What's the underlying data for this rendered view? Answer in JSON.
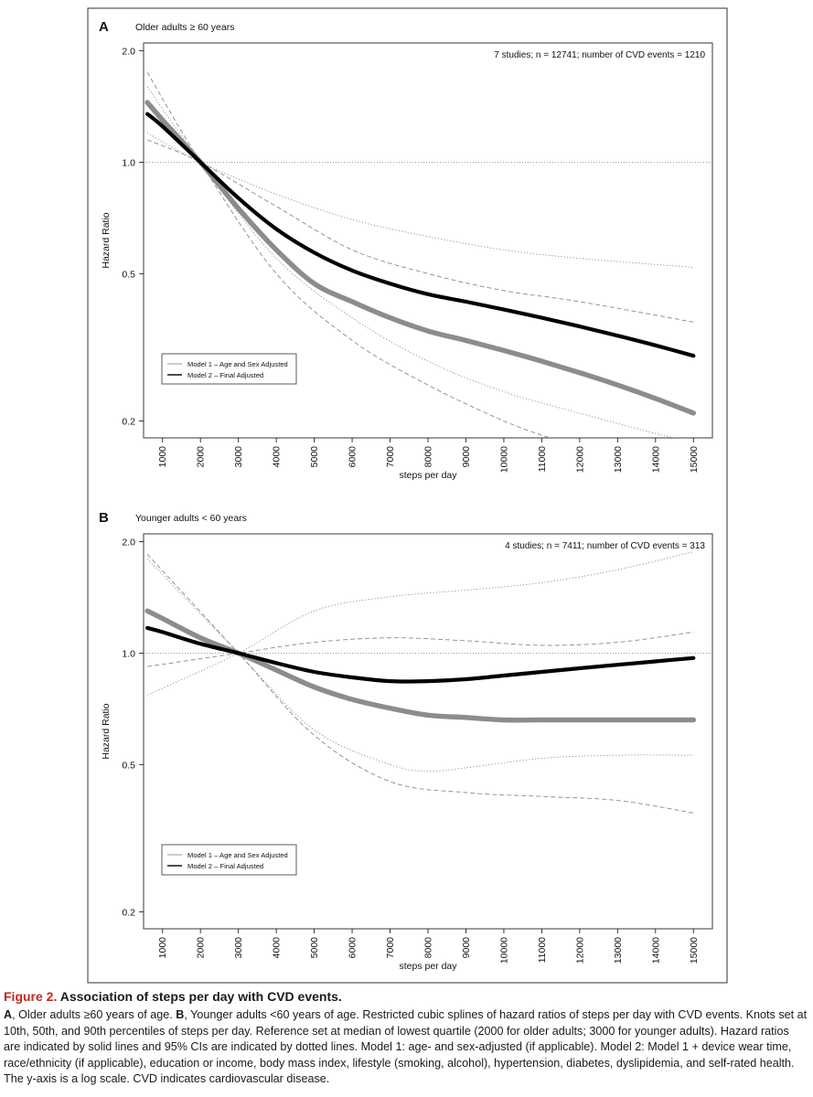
{
  "chart_data": [
    {
      "type": "line",
      "panel_letter": "A",
      "panel_title": "Older adults ≥ 60 years",
      "annotation": "7 studies; n = 12741; number of CVD events = 1210",
      "xlabel": "steps per day",
      "ylabel": "Hazard Ratio",
      "x_ticks": [
        1000,
        2000,
        3000,
        4000,
        5000,
        6000,
        7000,
        8000,
        9000,
        10000,
        11000,
        12000,
        13000,
        14000,
        15000
      ],
      "y_ticks": [
        "0.2",
        "0.5",
        "1.0",
        "2.0"
      ],
      "y_scale": "log",
      "xlim": [
        500,
        15500
      ],
      "ylim": [
        0.18,
        2.1
      ],
      "reference_line": 1.0,
      "legend": {
        "position": "bottom-left",
        "entries": [
          "Model 1 – Age and Sex Adjusted",
          "Model 2 – Final Adjusted"
        ]
      },
      "series": [
        {
          "name": "Model 1 – Age and Sex Adjusted",
          "style": "solid-gray",
          "x": [
            600,
            1000,
            2000,
            3000,
            4000,
            5000,
            6000,
            7000,
            8000,
            9000,
            10000,
            11000,
            12000,
            13000,
            14000,
            15000
          ],
          "y": [
            1.45,
            1.3,
            1.0,
            0.75,
            0.58,
            0.47,
            0.42,
            0.38,
            0.35,
            0.33,
            0.31,
            0.29,
            0.27,
            0.25,
            0.23,
            0.21
          ]
        },
        {
          "name": "Model 2 – Final Adjusted",
          "style": "solid-black",
          "x": [
            600,
            1000,
            2000,
            3000,
            4000,
            5000,
            6000,
            7000,
            8000,
            9000,
            10000,
            11000,
            12000,
            13000,
            14000,
            15000
          ],
          "y": [
            1.35,
            1.25,
            1.0,
            0.8,
            0.66,
            0.57,
            0.51,
            0.47,
            0.44,
            0.42,
            0.4,
            0.38,
            0.36,
            0.34,
            0.32,
            0.3
          ]
        },
        {
          "style": "dotted-upper",
          "x": [
            600,
            2000,
            4000,
            6000,
            8000,
            10000,
            12000,
            15000
          ],
          "y": [
            1.2,
            1.0,
            0.82,
            0.7,
            0.63,
            0.58,
            0.55,
            0.52
          ]
        },
        {
          "style": "dotted-lower",
          "x": [
            600,
            2000,
            4000,
            6000,
            8000,
            10000,
            12000,
            14000,
            15000
          ],
          "y": [
            1.6,
            1.0,
            0.55,
            0.38,
            0.29,
            0.24,
            0.21,
            0.185,
            0.175
          ]
        },
        {
          "style": "dashed-upper",
          "x": [
            600,
            2000,
            4000,
            6000,
            8000,
            10000,
            12000,
            15000
          ],
          "y": [
            1.15,
            1.0,
            0.76,
            0.58,
            0.5,
            0.45,
            0.42,
            0.37
          ]
        },
        {
          "style": "dashed-lower",
          "x": [
            600,
            2000,
            4000,
            6000,
            8000,
            10000,
            11200
          ],
          "y": [
            1.75,
            1.0,
            0.5,
            0.33,
            0.25,
            0.2,
            0.18
          ]
        }
      ]
    },
    {
      "type": "line",
      "panel_letter": "B",
      "panel_title": "Younger adults < 60 years",
      "annotation": "4 studies; n = 7411; number of CVD events = 313",
      "xlabel": "steps per day",
      "ylabel": "Hazard Ratio",
      "x_ticks": [
        1000,
        2000,
        3000,
        4000,
        5000,
        6000,
        7000,
        8000,
        9000,
        10000,
        11000,
        12000,
        13000,
        14000,
        15000
      ],
      "y_ticks": [
        "0.2",
        "0.5",
        "1.0",
        "2.0"
      ],
      "y_scale": "log",
      "xlim": [
        500,
        15500
      ],
      "ylim": [
        0.18,
        2.1
      ],
      "reference_line": 1.0,
      "legend": {
        "position": "bottom-left",
        "entries": [
          "Model 1 – Age and Sex Adjusted",
          "Model 2 – Final Adjusted"
        ]
      },
      "series": [
        {
          "name": "Model 1 – Age and Sex Adjusted",
          "style": "solid-gray",
          "x": [
            600,
            1000,
            2000,
            3000,
            4000,
            5000,
            6000,
            7000,
            8000,
            9000,
            10000,
            11000,
            12000,
            13000,
            14000,
            15000
          ],
          "y": [
            1.3,
            1.24,
            1.1,
            1.0,
            0.9,
            0.81,
            0.75,
            0.71,
            0.68,
            0.67,
            0.66,
            0.66,
            0.66,
            0.66,
            0.66,
            0.66
          ]
        },
        {
          "name": "Model 2 – Final Adjusted",
          "style": "solid-black",
          "x": [
            600,
            1000,
            2000,
            3000,
            4000,
            5000,
            6000,
            7000,
            8000,
            9000,
            10000,
            11000,
            12000,
            13000,
            14000,
            15000
          ],
          "y": [
            1.17,
            1.14,
            1.06,
            1.0,
            0.94,
            0.89,
            0.86,
            0.84,
            0.84,
            0.85,
            0.87,
            0.89,
            0.91,
            0.93,
            0.95,
            0.97
          ]
        },
        {
          "style": "dotted-upper",
          "x": [
            600,
            3000,
            5000,
            7000,
            9000,
            11000,
            13000,
            15000
          ],
          "y": [
            0.77,
            1.0,
            1.3,
            1.42,
            1.48,
            1.55,
            1.68,
            1.88
          ]
        },
        {
          "style": "dotted-lower",
          "x": [
            600,
            3000,
            5000,
            7000,
            8000,
            9000,
            11000,
            13000,
            15000
          ],
          "y": [
            1.8,
            1.0,
            0.62,
            0.5,
            0.48,
            0.49,
            0.52,
            0.53,
            0.53
          ]
        },
        {
          "style": "dashed-upper",
          "x": [
            600,
            3000,
            5000,
            7000,
            9000,
            11000,
            13000,
            15000
          ],
          "y": [
            0.92,
            1.0,
            1.07,
            1.1,
            1.08,
            1.05,
            1.07,
            1.14
          ]
        },
        {
          "style": "dashed-lower",
          "x": [
            600,
            3000,
            5000,
            7000,
            9000,
            11000,
            13000,
            15000
          ],
          "y": [
            1.85,
            1.0,
            0.6,
            0.45,
            0.42,
            0.41,
            0.4,
            0.37
          ]
        }
      ]
    }
  ],
  "caption": {
    "figure_label": "Figure 2.",
    "title": "Association of steps per day with CVD events.",
    "body": [
      {
        "bold": "A",
        "text": ", Older adults ≥60 years of age. "
      },
      {
        "bold": "B",
        "text": ", Younger adults <60 years of age. Restricted cubic splines of hazard ratios of steps per day with CVD events. Knots set at 10th, 50th, and 90th percentiles of steps per day. Reference set at median of lowest quartile (2000 for older adults; 3000 for younger adults). Hazard ratios are indicated by solid lines and 95% CIs are indicated by dotted lines. Model 1: age- and sex-adjusted (if applicable). Model 2: Model 1 + device wear time, race/ethnicity (if applicable), education or income, body mass index, lifestyle (smoking, alcohol), hypertension, diabetes, dyslipidemia, and self-rated health. The y-axis is a log scale. CVD indicates cardiovascular disease."
      }
    ]
  }
}
